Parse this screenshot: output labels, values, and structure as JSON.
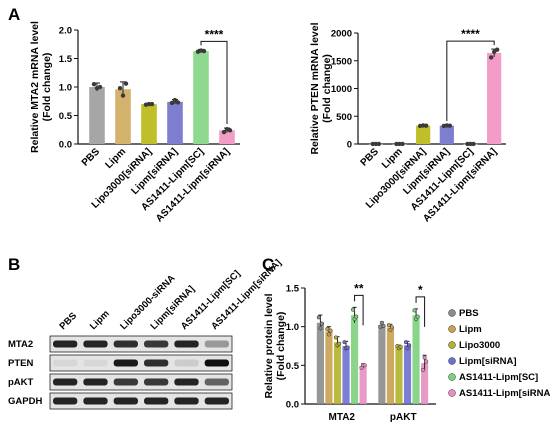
{
  "panel_labels": {
    "a": "A",
    "b": "B",
    "c": "C"
  },
  "chart_data": [
    {
      "id": "mta2-mrna",
      "type": "bar",
      "ylabel": "Relative MTA2 mRNA level\n(Fold change)",
      "ylim": [
        0,
        2.0
      ],
      "yticks": [
        "0.0",
        "0.5",
        "1.0",
        "1.5",
        "2.0"
      ],
      "ytick_values": [
        0,
        0.5,
        1.0,
        1.5,
        2.0
      ],
      "categories": [
        "PBS",
        "Lipm",
        "Lipo3000[siRNA]",
        "Lipm[siRNA]",
        "AS1411-Lipm[SC]",
        "AS1411-Lipm[siRNA]"
      ],
      "values": [
        1.0,
        0.96,
        0.7,
        0.74,
        1.63,
        0.24
      ],
      "errors": [
        0.07,
        0.13,
        0.01,
        0.04,
        0.03,
        0.04
      ],
      "points": [
        [
          1.05,
          0.98,
          1.0
        ],
        [
          0.98,
          0.85,
          1.06
        ],
        [
          0.69,
          0.7,
          0.7
        ],
        [
          0.72,
          0.77,
          0.73
        ],
        [
          1.62,
          1.64,
          1.63
        ],
        [
          0.21,
          0.26,
          0.24
        ]
      ],
      "colors": [
        "#a6a6a6",
        "#d3b36b",
        "#bfbf2a",
        "#7e7ecf",
        "#8fd88f",
        "#f29cc6"
      ],
      "bracket": {
        "from": 4,
        "to": 5,
        "label": "****"
      }
    },
    {
      "id": "pten-mrna",
      "type": "bar",
      "ylabel": "Relative PTEN mRNA level\n(Fold change)",
      "ylim": [
        0,
        2000
      ],
      "yticks": [
        "0",
        "500",
        "1000",
        "1500",
        "2000"
      ],
      "ytick_values": [
        0,
        500,
        1000,
        1500,
        2000
      ],
      "categories": [
        "PBS",
        "Lipm",
        "Lipo3000[siRNA]",
        "Lipm[siRNA]",
        "AS1411-Lipm[SC]",
        "AS1411-Lipm[siRNA]"
      ],
      "values": [
        1,
        1,
        330,
        330,
        2,
        1640
      ],
      "errors": [
        1,
        1,
        10,
        10,
        1,
        70
      ],
      "points": [
        [
          1,
          1,
          1
        ],
        [
          1,
          1,
          1
        ],
        [
          325,
          335,
          330
        ],
        [
          326,
          334,
          330
        ],
        [
          2,
          2,
          2
        ],
        [
          1560,
          1660,
          1700
        ]
      ],
      "colors": [
        "#a6a6a6",
        "#d3b36b",
        "#bfbf2a",
        "#7e7ecf",
        "#8fd88f",
        "#f29cc6"
      ],
      "bracket": {
        "from": 3,
        "to": 5,
        "label": "****"
      }
    },
    {
      "id": "protein-level",
      "type": "bar",
      "ylabel": "Relative protein level\n(Fold change)",
      "ylim": [
        0,
        1.5
      ],
      "yticks": [
        "0.0",
        "0.5",
        "1.0",
        "1.5"
      ],
      "ytick_values": [
        0,
        0.5,
        1.0,
        1.5
      ],
      "categories": [
        "MTA2",
        "pAKT"
      ],
      "series": [
        {
          "name": "PBS",
          "color": "#8c8c8c",
          "values": [
            1.05,
            1.02
          ],
          "errors": [
            0.1,
            0.04
          ],
          "points": [
            [
              1.12,
              0.98,
              1.04
            ],
            [
              1.0,
              1.05,
              1.01
            ]
          ]
        },
        {
          "name": "Lipm",
          "color": "#c9a04f",
          "values": [
            0.94,
            0.99
          ],
          "errors": [
            0.06,
            0.04
          ],
          "points": [
            [
              0.97,
              0.9,
              0.95
            ],
            [
              1.02,
              0.96,
              0.99
            ]
          ]
        },
        {
          "name": "Lipo3000",
          "color": "#b3b32b",
          "values": [
            0.8,
            0.74
          ],
          "errors": [
            0.07,
            0.02
          ],
          "points": [
            [
              0.86,
              0.76,
              0.78
            ],
            [
              0.75,
              0.72,
              0.74
            ]
          ]
        },
        {
          "name": "Lipm[siRNA]",
          "color": "#6f6fd0",
          "values": [
            0.75,
            0.76
          ],
          "errors": [
            0.06,
            0.05
          ],
          "points": [
            [
              0.8,
              0.72,
              0.73
            ],
            [
              0.8,
              0.72,
              0.76
            ]
          ]
        },
        {
          "name": "AS1411-Lipm[SC]",
          "color": "#7ed07e",
          "values": [
            1.15,
            1.15
          ],
          "errors": [
            0.1,
            0.08
          ],
          "points": [
            [
              1.22,
              1.1,
              1.13
            ],
            [
              1.21,
              1.1,
              1.13
            ]
          ]
        },
        {
          "name": "AS1411-Lipm[siRNA]",
          "color": "#e68fc0",
          "values": [
            0.49,
            0.53
          ],
          "errors": [
            0.03,
            0.1
          ],
          "points": [
            [
              0.47,
              0.5,
              0.5
            ],
            [
              0.44,
              0.6,
              0.55
            ]
          ]
        }
      ],
      "brackets": [
        {
          "category": 0,
          "from": 4,
          "to": 5,
          "label": "**"
        },
        {
          "category": 1,
          "from": 4,
          "to": 5,
          "label": "*"
        }
      ],
      "legend_position": "right"
    }
  ],
  "western_blot": {
    "lanes": [
      "PBS",
      "Lipm",
      "Lipo3000-siRNA",
      "Lipm[siRNA]",
      "AS1411-Lipm[SC]",
      "AS1411-Lipm[siRNA]"
    ],
    "rows": [
      {
        "name": "MTA2",
        "intensity": [
          0.9,
          0.9,
          0.85,
          0.8,
          0.9,
          0.35
        ]
      },
      {
        "name": "PTEN",
        "intensity": [
          0.05,
          0.05,
          0.95,
          0.85,
          0.1,
          1.0
        ]
      },
      {
        "name": "pAKT",
        "intensity": [
          0.9,
          0.9,
          0.8,
          0.8,
          0.9,
          0.6
        ]
      },
      {
        "name": "GAPDH",
        "intensity": [
          0.9,
          0.9,
          0.9,
          0.9,
          0.9,
          0.9
        ]
      }
    ]
  }
}
